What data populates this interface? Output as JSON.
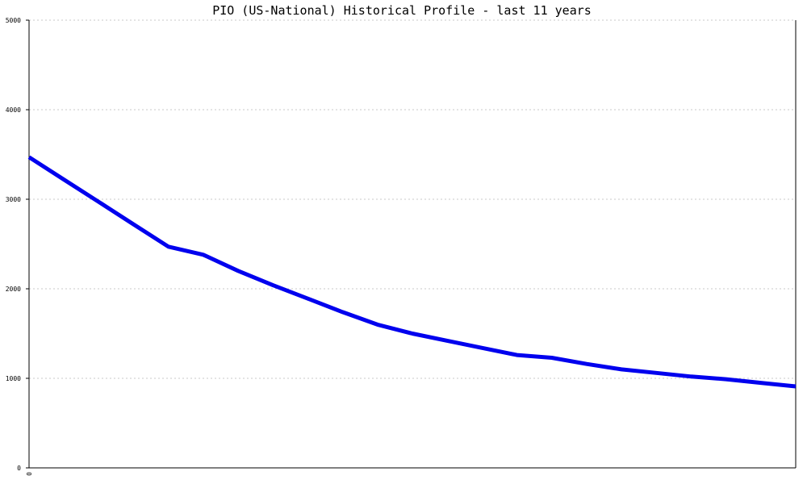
{
  "chart_data": {
    "type": "line",
    "title": "PIO (US-National) Historical Profile - last 11 years",
    "xlabel": "",
    "ylabel": "",
    "ylim": [
      0,
      5000
    ],
    "yticks": [
      "0",
      "1000",
      "2000",
      "3000",
      "4000",
      "5000"
    ],
    "xticks": [
      "0"
    ],
    "grid": true,
    "series": [
      {
        "color": "#0000ee",
        "x": [
          0,
          1,
          2,
          3,
          4,
          5,
          6,
          7,
          8,
          9,
          10,
          11,
          12,
          13,
          14,
          15,
          16,
          17,
          18,
          19,
          20,
          21,
          22
        ],
        "values": [
          3470,
          3220,
          2970,
          2720,
          2470,
          2380,
          2200,
          2040,
          1890,
          1740,
          1600,
          1500,
          1420,
          1340,
          1260,
          1230,
          1160,
          1100,
          1060,
          1020,
          990,
          950,
          910
        ]
      }
    ]
  }
}
